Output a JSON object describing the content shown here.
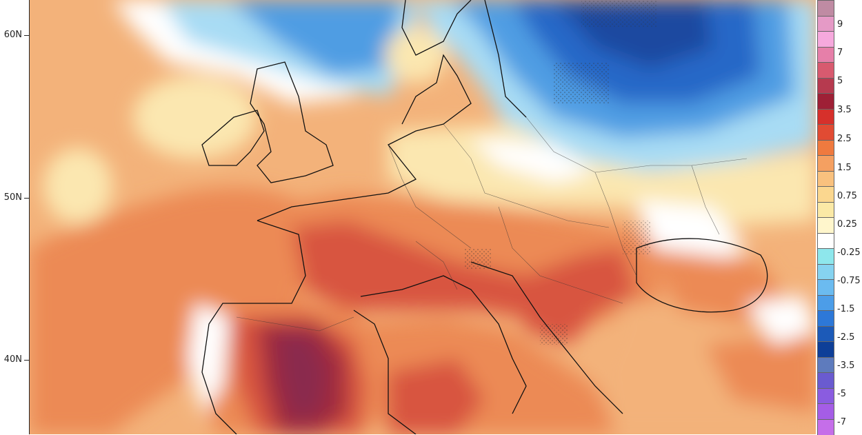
{
  "map": {
    "latitude_labels": [
      "60N",
      "50N",
      "40N"
    ],
    "colors": {
      "atlantic_warm": "#f3b27a",
      "warm_orange": "#ec8a55",
      "hot_red": "#d8543f",
      "deep_red": "#a02b3c",
      "maroon": "#8a2a4e",
      "pale_yellow": "#fbe7b0",
      "white": "#ffffff",
      "light_blue": "#a8dcf4",
      "mid_blue": "#4f9de3",
      "deep_blue": "#2867c7",
      "navy": "#1a4aa0"
    }
  },
  "legend": {
    "labels": [
      "9",
      "7",
      "5",
      "3.5",
      "2.5",
      "1.5",
      "0.75",
      "0.25",
      "-0.25",
      "-0.75",
      "-1.5",
      "-2.5",
      "-3.5",
      "-5",
      "-7"
    ],
    "colors": [
      "#bf8ba3",
      "#e59ac6",
      "#f6a9dd",
      "#e67fa9",
      "#d85a6f",
      "#b63a4f",
      "#9e2036",
      "#d6302b",
      "#e14b33",
      "#ef7a3f",
      "#f5a061",
      "#f9c17e",
      "#fbd78f",
      "#fbe9a6",
      "#fff6cc",
      "#ffffff",
      "#8ee7ec",
      "#86d3f0",
      "#6bbbf0",
      "#4c9de8",
      "#2d78d8",
      "#1c5ab8",
      "#0e3f98",
      "#5e7bbd",
      "#6a5bd0",
      "#8a5ce0",
      "#a55de6",
      "#c56ee9"
    ]
  }
}
